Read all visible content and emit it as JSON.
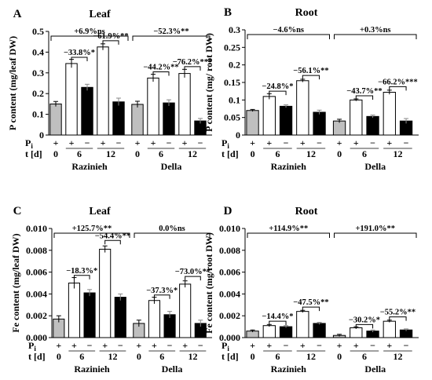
{
  "chart_data": [
    {
      "type": "bar",
      "panel_label": "A",
      "title": "Leaf",
      "ylabel": "P content (mg/leaf DW)",
      "ylim": [
        0,
        0.5
      ],
      "yticks": [
        "0",
        "0.1",
        "0.2",
        "0.3",
        "0.4",
        "0.5"
      ],
      "pi_row": [
        "+",
        "+",
        "−",
        "+",
        "−"
      ],
      "t_row": [
        "0",
        "6",
        "12"
      ],
      "row_labels": [
        "P",
        "i",
        "t [d]"
      ],
      "groups": [
        "Razinieh",
        "Della"
      ],
      "bar_fill": [
        "gray",
        "white",
        "black",
        "white",
        "black"
      ],
      "series": [
        {
          "group": "Razinieh",
          "values": [
            0.15,
            0.345,
            0.23,
            0.425,
            0.16
          ],
          "errors": [
            0.012,
            0.02,
            0.015,
            0.015,
            0.018
          ]
        },
        {
          "group": "Della",
          "values": [
            0.148,
            0.275,
            0.155,
            0.297,
            0.068
          ],
          "errors": [
            0.015,
            0.018,
            0.015,
            0.02,
            0.012
          ]
        }
      ],
      "annotations": [
        {
          "text": "+6.9%ns",
          "kind": "top",
          "group": 0
        },
        {
          "text": "−52.3%**",
          "kind": "top",
          "group": 1
        },
        {
          "text": "−33.8%*",
          "kind": "pair",
          "group": 0,
          "pair": 0,
          "y": 0.375
        },
        {
          "text": "−61.9%**",
          "kind": "pair",
          "group": 0,
          "pair": 1,
          "y": 0.455
        },
        {
          "text": "−44.2%**",
          "kind": "pair",
          "group": 1,
          "pair": 0,
          "y": 0.305
        },
        {
          "text": "−76.2%***",
          "kind": "pair",
          "group": 1,
          "pair": 1,
          "y": 0.33
        }
      ]
    },
    {
      "type": "bar",
      "panel_label": "B",
      "title": "Root",
      "ylabel": "P content (mg/ root DW)",
      "ylim": [
        0,
        0.3
      ],
      "yticks": [
        "0",
        "0.05",
        "0.1",
        "0.15",
        "0.2",
        "0.25",
        "0.3"
      ],
      "pi_row": [
        "+",
        "+",
        "−",
        "+",
        "−"
      ],
      "t_row": [
        "0",
        "6",
        "12"
      ],
      "row_labels": [
        "P",
        "i",
        "t [d]"
      ],
      "groups": [
        "Razinieh",
        "Della"
      ],
      "bar_fill": [
        "gray",
        "white",
        "black",
        "white",
        "black"
      ],
      "series": [
        {
          "group": "Razinieh",
          "values": [
            0.07,
            0.11,
            0.082,
            0.155,
            0.065
          ],
          "errors": [
            0.003,
            0.008,
            0.004,
            0.004,
            0.006
          ]
        },
        {
          "group": "Della",
          "values": [
            0.04,
            0.1,
            0.053,
            0.122,
            0.04
          ],
          "errors": [
            0.005,
            0.003,
            0.004,
            0.006,
            0.007
          ]
        }
      ],
      "annotations": [
        {
          "text": "−4.6%ns",
          "kind": "top",
          "group": 0
        },
        {
          "text": "+0.3%ns",
          "kind": "top",
          "group": 1
        },
        {
          "text": "−24.8%*",
          "kind": "pair",
          "group": 0,
          "pair": 0,
          "y": 0.125
        },
        {
          "text": "−56.1%**",
          "kind": "pair",
          "group": 0,
          "pair": 1,
          "y": 0.17
        },
        {
          "text": "−43.7%**",
          "kind": "pair",
          "group": 1,
          "pair": 0,
          "y": 0.112
        },
        {
          "text": "−66.2%***",
          "kind": "pair",
          "group": 1,
          "pair": 1,
          "y": 0.138
        }
      ]
    },
    {
      "type": "bar",
      "panel_label": "C",
      "title": "Leaf",
      "ylabel": "Fe content (mg/leaf DW)",
      "ylim": [
        0,
        0.01
      ],
      "yticks": [
        "0.000",
        "0.002",
        "0.004",
        "0.006",
        "0.008",
        "0.010"
      ],
      "pi_row": [
        "+",
        "+",
        "−",
        "+",
        "−"
      ],
      "t_row": [
        "0",
        "6",
        "12"
      ],
      "row_labels": [
        "P",
        "i",
        "t [d]"
      ],
      "groups": [
        "Razinieh",
        "Della"
      ],
      "bar_fill": [
        "gray",
        "white",
        "black",
        "white",
        "black"
      ],
      "series": [
        {
          "group": "Razinieh",
          "values": [
            0.0017,
            0.005,
            0.0041,
            0.0081,
            0.0037
          ],
          "errors": [
            0.0003,
            0.0005,
            0.0003,
            0.0003,
            0.0003
          ]
        },
        {
          "group": "Della",
          "values": [
            0.0013,
            0.0034,
            0.0021,
            0.0049,
            0.0013
          ],
          "errors": [
            0.0003,
            0.0003,
            0.0003,
            0.0003,
            0.0003
          ]
        }
      ],
      "annotations": [
        {
          "text": "+125.7%**",
          "kind": "top",
          "group": 0
        },
        {
          "text": "0.0%ns",
          "kind": "top",
          "group": 1
        },
        {
          "text": "−18.3%*",
          "kind": "pair",
          "group": 0,
          "pair": 0,
          "y": 0.0057
        },
        {
          "text": "−54.4%**",
          "kind": "pair",
          "group": 0,
          "pair": 1,
          "y": 0.0089
        },
        {
          "text": "−37.3%*",
          "kind": "pair",
          "group": 1,
          "pair": 0,
          "y": 0.0039
        },
        {
          "text": "−73.0%**",
          "kind": "pair",
          "group": 1,
          "pair": 1,
          "y": 0.0056
        }
      ]
    },
    {
      "type": "bar",
      "panel_label": "D",
      "title": "Root",
      "ylabel": "Fe content (mg/root DW)",
      "ylim": [
        0,
        0.01
      ],
      "yticks": [
        "0.000",
        "0.002",
        "0.004",
        "0.006",
        "0.008",
        "0.010"
      ],
      "pi_row": [
        "+",
        "+",
        "−",
        "+",
        "−"
      ],
      "t_row": [
        "0",
        "6",
        "12"
      ],
      "row_labels": [
        "P",
        "i",
        "t [d]"
      ],
      "groups": [
        "Razinieh",
        "Della"
      ],
      "bar_fill": [
        "gray",
        "white",
        "black",
        "white",
        "black"
      ],
      "series": [
        {
          "group": "Razinieh",
          "values": [
            0.0006,
            0.0011,
            0.001,
            0.0024,
            0.0013
          ],
          "errors": [
            0.0001,
            0.0001,
            0.0001,
            0.0001,
            0.0001
          ]
        },
        {
          "group": "Della",
          "values": [
            0.0002,
            0.0009,
            0.0006,
            0.0015,
            0.0007
          ],
          "errors": [
            0.0001,
            0.0001,
            0.0001,
            0.0001,
            0.0001
          ]
        }
      ],
      "annotations": [
        {
          "text": "+114.9%**",
          "kind": "top",
          "group": 0
        },
        {
          "text": "+191.0%**",
          "kind": "top",
          "group": 1
        },
        {
          "text": "−14.4%*",
          "kind": "pair",
          "group": 0,
          "pair": 0,
          "y": 0.0015
        },
        {
          "text": "−47.5%**",
          "kind": "pair",
          "group": 0,
          "pair": 1,
          "y": 0.0028
        },
        {
          "text": "−30.2%*",
          "kind": "pair",
          "group": 1,
          "pair": 0,
          "y": 0.0012
        },
        {
          "text": "−55.2%**",
          "kind": "pair",
          "group": 1,
          "pair": 1,
          "y": 0.0019
        }
      ]
    }
  ]
}
